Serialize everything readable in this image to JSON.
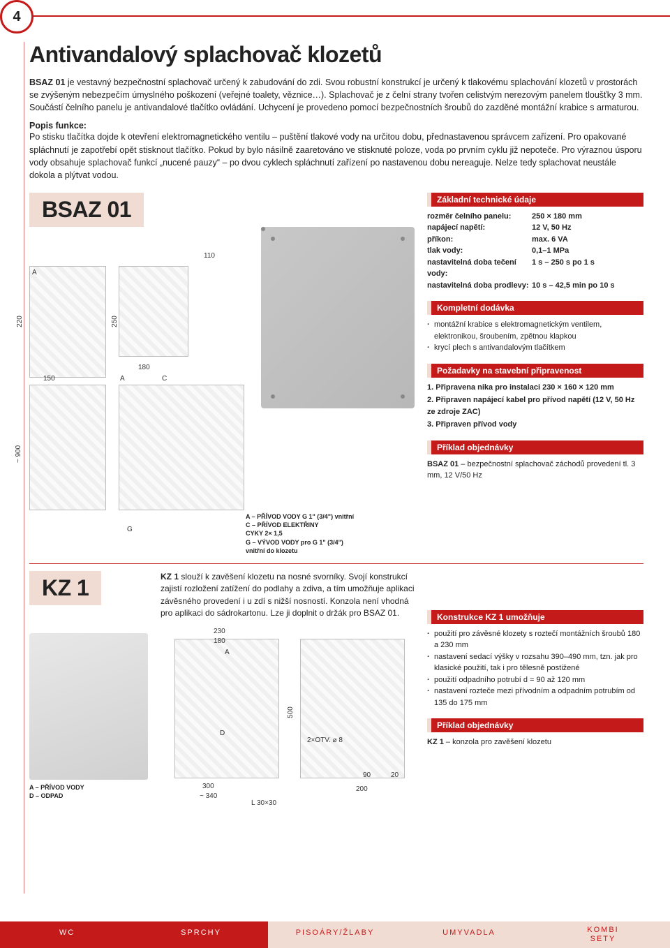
{
  "page_number": "4",
  "title": "Antivandalový splachovač klozetů",
  "intro_html": "<b>BSAZ 01</b> je vestavný bezpečnostní splachovač určený k zabudování do zdi. Svou robustní konstrukcí je určený k tlakovému splachování klozetů v prostorách se zvýšeným nebezpečím úmyslného poškození (veřejné toalety, věznice…). Splachovač je z čelní strany tvořen celistvým nerezovým panelem tloušťky 3 mm. Součástí čelního panelu je antivandalové tlačítko ovládání. Uchycení je provedeno pomocí bezpečnostních šroubů do zazděné montážní krabice s armaturou.",
  "popis_head": "Popis funkce:",
  "popis_body": "Po stisku tlačítka dojde k otevření elektromagnetického ventilu – puštění tlakové vody na určitou dobu, přednastavenou správcem zařízení. Pro opakované spláchnutí je zapotřebí opět stisknout tlačítko. Pokud by bylo násilně zaaretováno ve stisknuté poloze, voda po prvním cyklu již nepoteče. Pro výraznou úsporu vody obsahuje splachovač funkcí „nucené pauzy“ – po dvou cyklech spláchnutí zařízení po nastavenou dobu nereaguje. Nelze tedy splachovat neustále dokola a plýtvat vodou.",
  "product1": {
    "code": "BSAZ 01",
    "dims": {
      "d110": "110",
      "d180": "180",
      "d150": "150",
      "d220": "220",
      "d250": "250",
      "d900": "~ 900",
      "A": "A",
      "C": "C",
      "G": "G"
    },
    "legend": "A – PŘÍVOD VODY G 1\" (3/4\") vnitřní\nC – PŘÍVOD ELEKTŘINY\n      CYKY 2× 1,5\nG – VÝVOD VODY pro G 1\" (3/4\")\n      vnitřní do klozetu"
  },
  "specs_head": "Základní technické údaje",
  "specs": [
    {
      "k": "rozměr čelního panelu:",
      "v": "250 × 180 mm"
    },
    {
      "k": "napájecí napětí:",
      "v": "12 V, 50 Hz"
    },
    {
      "k": "příkon:",
      "v": "max. 6 VA"
    },
    {
      "k": "tlak vody:",
      "v": "0,1–1 MPa"
    },
    {
      "k": "nastavitelná doba tečení vody:",
      "v": "1 s – 250 s po 1 s"
    },
    {
      "k": "nastavitelná doba prodlevy:",
      "v": "10 s – 42,5 min po 10 s"
    }
  ],
  "delivery_head": "Kompletní dodávka",
  "delivery": [
    "montážní krabice s elektromagnetickým ventilem, elektronikou, šroubením, zpětnou klapkou",
    "krycí plech s antivandalovým tlačítkem"
  ],
  "prep_head": "Požadavky na stavební připravenost",
  "prep": [
    "1. Připravena nika pro instalaci 230 × 160 × 120 mm",
    "2. Připraven napájecí kabel pro přívod napětí (12 V, 50 Hz ze zdroje ZAC)",
    "3. Připraven přívod vody"
  ],
  "order1_head": "Příklad objednávky",
  "order1_body": "<b>BSAZ 01</b> – bezpečnostní splachovač záchodů provedení tl. 3 mm, 12 V/50 Hz",
  "product2": {
    "code": "KZ 1",
    "desc": "<b>KZ 1</b> slouží k zavěšení klozetu na nosné svorníky. Svojí konstrukcí zajistí rozložení zatížení do podlahy a zdiva, a tím umožňuje aplikaci závěsného provedení i u zdí s nižší nosností. Konzola není vhodná pro aplikaci do sádrokartonu. Lze ji doplnit o držák pro BSAZ 01.",
    "dims": {
      "d230": "230",
      "d180": "180",
      "d500": "500",
      "d300": "300",
      "d340": "~ 340",
      "d90": "90",
      "d20": "20",
      "d200": "200",
      "L": "L 30×30",
      "otv": "2×OTV. ⌀ 8",
      "A": "A",
      "D": "D"
    },
    "legend": "A – PŘÍVOD VODY\nD – ODPAD"
  },
  "kz_head": "Konstrukce KZ 1 umožňuje",
  "kz_bullets": [
    "použití pro závěsné klozety s roztečí montážních šroubů 180 a 230 mm",
    "nastavení sedací výšky v rozsahu 390–490 mm, tzn. jak pro klasické použití, tak i pro tělesně postižené",
    "použití odpadního potrubí d = 90 až 120 mm",
    "nastavení rozteče mezi přívodním a odpadním potrubím od 135 do 175 mm"
  ],
  "order2_head": "Příklad objednávky",
  "order2_body": "<b>KZ 1</b> – konzola pro zavěšení klozetu",
  "tabs": [
    "WC",
    "SPRCHY",
    "PISOÁRY/ŽLABY",
    "UMYVADLA",
    "KOMBI\nSETY"
  ]
}
